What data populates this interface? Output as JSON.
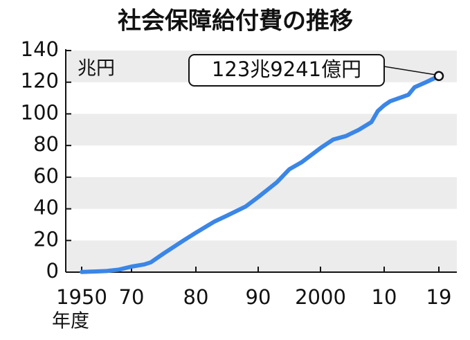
{
  "chart_data": {
    "type": "line",
    "title": "社会保障給付費の推移",
    "unit_label": "兆円",
    "xlabel": "年度",
    "annotation": "123兆9241億円",
    "x": [
      1950,
      1955,
      1960,
      1965,
      1970,
      1972,
      1973,
      1975,
      1978,
      1980,
      1983,
      1985,
      1988,
      1990,
      1993,
      1995,
      1997,
      2000,
      2002,
      2004,
      2006,
      2008,
      2009,
      2010,
      2011,
      2013,
      2014,
      2015,
      2017,
      2019
    ],
    "series": [
      {
        "color": "#3b86e6",
        "values": [
          0.1,
          0.4,
          0.7,
          1.6,
          3.5,
          4.9,
          6.2,
          11.8,
          19.8,
          24.9,
          32.0,
          35.7,
          41.5,
          47.4,
          56.8,
          65.0,
          69.5,
          78.4,
          83.8,
          86.0,
          89.9,
          94.8,
          101.8,
          105.4,
          108.0,
          110.7,
          112.1,
          116.8,
          120.2,
          123.9
        ]
      }
    ],
    "xlim": [
      1950,
      2019
    ],
    "xticks": [
      1950,
      {
        "value": 1970,
        "label": "70"
      },
      {
        "value": 1980,
        "label": "80"
      },
      {
        "value": 1990,
        "label": "90"
      },
      2000,
      {
        "value": 2010,
        "label": "10"
      },
      {
        "value": 2019,
        "label": "19"
      }
    ],
    "ylim": [
      0,
      140
    ],
    "yticks": [
      0,
      20,
      40,
      60,
      80,
      100,
      120,
      140
    ],
    "grid": "bands"
  }
}
